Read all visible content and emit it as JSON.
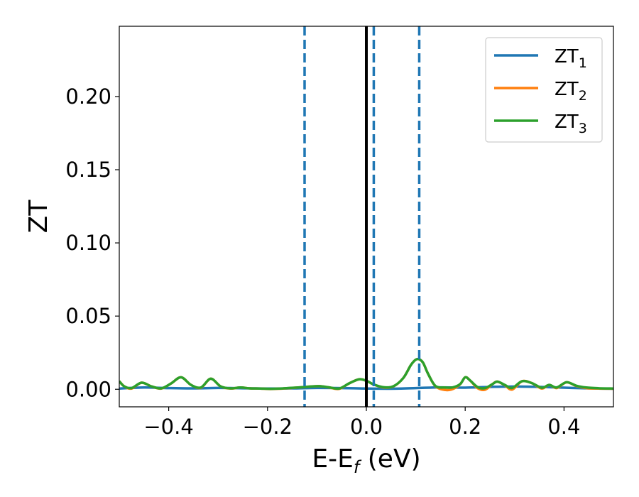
{
  "chart_data": {
    "type": "line",
    "title": "",
    "xlabel": "E-E",
    "xlabel_sub": "f",
    "xlabel_unit": " (eV)",
    "ylabel": "ZT",
    "xlim": [
      -0.5,
      0.5
    ],
    "ylim": [
      -0.012,
      0.248
    ],
    "xticks": [
      -0.4,
      -0.2,
      0.0,
      0.2,
      0.4
    ],
    "xtick_labels": [
      "−0.4",
      "−0.2",
      "0.0",
      "0.2",
      "0.4"
    ],
    "yticks": [
      0.0,
      0.05,
      0.1,
      0.15,
      0.2
    ],
    "ytick_labels": [
      "0.00",
      "0.05",
      "0.10",
      "0.15",
      "0.20"
    ],
    "grid": false,
    "legend_placement": "top-right",
    "solid_vline": {
      "x": 0.0,
      "color": "#000000"
    },
    "dashed_vlines": [
      {
        "x": -0.125,
        "color": "#1f77b4"
      },
      {
        "x": 0.015,
        "color": "#1f77b4"
      },
      {
        "x": 0.107,
        "color": "#1f77b4"
      }
    ],
    "series": [
      {
        "name": "ZT",
        "name_sub": "1",
        "color": "#1f77b4",
        "x": [
          -0.5,
          -0.45,
          -0.4,
          -0.35,
          -0.3,
          -0.25,
          -0.2,
          -0.15,
          -0.1,
          -0.05,
          0.0,
          0.05,
          0.1,
          0.15,
          0.2,
          0.25,
          0.3,
          0.35,
          0.4,
          0.45,
          0.5
        ],
        "y": [
          0.0005,
          0.0012,
          0.0008,
          0.0006,
          0.0009,
          0.0007,
          0.0005,
          0.0006,
          0.0009,
          0.0008,
          0.0005,
          0.0004,
          0.0008,
          0.0013,
          0.0011,
          0.0016,
          0.0019,
          0.0016,
          0.0011,
          0.0006,
          0.0004
        ]
      },
      {
        "name": "ZT",
        "name_sub": "2",
        "color": "#ff7f0e",
        "x": [
          -0.5,
          -0.49,
          -0.475,
          -0.455,
          -0.435,
          -0.415,
          -0.395,
          -0.375,
          -0.355,
          -0.335,
          -0.315,
          -0.295,
          -0.275,
          -0.255,
          -0.235,
          -0.215,
          -0.195,
          -0.175,
          -0.155,
          -0.135,
          -0.115,
          -0.095,
          -0.075,
          -0.055,
          -0.035,
          -0.015,
          0.0,
          0.015,
          0.035,
          0.055,
          0.075,
          0.09,
          0.1,
          0.107,
          0.115,
          0.125,
          0.14,
          0.16,
          0.175,
          0.19,
          0.2,
          0.21,
          0.225,
          0.24,
          0.255,
          0.265,
          0.28,
          0.295,
          0.315,
          0.335,
          0.355,
          0.37,
          0.385,
          0.405,
          0.425,
          0.445,
          0.47,
          0.5
        ],
        "y": [
          0.0055,
          0.002,
          0.0005,
          0.0045,
          0.002,
          0.0005,
          0.004,
          0.0082,
          0.003,
          0.001,
          0.0072,
          0.002,
          0.0005,
          0.0012,
          0.0006,
          0.0005,
          0.0002,
          0.0004,
          0.0008,
          0.0013,
          0.0018,
          0.0021,
          0.0012,
          0.0003,
          0.004,
          0.0068,
          0.0058,
          0.0032,
          0.0012,
          0.002,
          0.0078,
          0.0165,
          0.0202,
          0.0205,
          0.018,
          0.0105,
          0.002,
          -0.0005,
          0.0002,
          0.0035,
          0.0082,
          0.006,
          0.0008,
          -0.0003,
          0.0035,
          0.0052,
          0.0028,
          -0.0002,
          0.0055,
          0.0042,
          0.0005,
          0.003,
          0.0008,
          0.0048,
          0.0022,
          0.0008,
          0.0005,
          0.0004
        ]
      },
      {
        "name": "ZT",
        "name_sub": "3",
        "color": "#2ca02c",
        "x": [
          -0.5,
          -0.49,
          -0.475,
          -0.455,
          -0.435,
          -0.415,
          -0.395,
          -0.375,
          -0.355,
          -0.335,
          -0.315,
          -0.295,
          -0.275,
          -0.255,
          -0.235,
          -0.215,
          -0.195,
          -0.175,
          -0.155,
          -0.135,
          -0.115,
          -0.095,
          -0.075,
          -0.055,
          -0.035,
          -0.015,
          0.0,
          0.015,
          0.035,
          0.055,
          0.075,
          0.09,
          0.1,
          0.107,
          0.115,
          0.125,
          0.14,
          0.16,
          0.175,
          0.19,
          0.2,
          0.21,
          0.225,
          0.24,
          0.255,
          0.265,
          0.28,
          0.295,
          0.315,
          0.335,
          0.355,
          0.37,
          0.385,
          0.405,
          0.425,
          0.445,
          0.47,
          0.5
        ],
        "y": [
          0.0055,
          0.002,
          0.0008,
          0.0045,
          0.002,
          0.0006,
          0.004,
          0.0082,
          0.003,
          0.0012,
          0.0072,
          0.002,
          0.0006,
          0.0012,
          0.0006,
          0.0005,
          0.0003,
          0.0005,
          0.0009,
          0.0013,
          0.0018,
          0.0021,
          0.0013,
          0.0005,
          0.004,
          0.0068,
          0.0058,
          0.0033,
          0.0014,
          0.0021,
          0.0078,
          0.0165,
          0.0202,
          0.0205,
          0.018,
          0.0105,
          0.0022,
          0.0012,
          0.0013,
          0.0036,
          0.0082,
          0.006,
          0.0015,
          0.0008,
          0.0035,
          0.0052,
          0.003,
          0.0009,
          0.0055,
          0.0042,
          0.001,
          0.003,
          0.0012,
          0.0048,
          0.0024,
          0.0012,
          0.0007,
          0.0005
        ]
      }
    ]
  }
}
